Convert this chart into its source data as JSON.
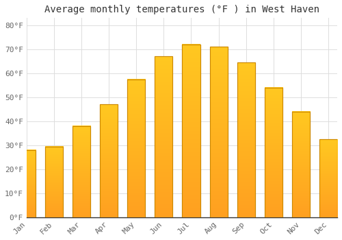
{
  "months": [
    "Jan",
    "Feb",
    "Mar",
    "Apr",
    "May",
    "Jun",
    "Jul",
    "Aug",
    "Sep",
    "Oct",
    "Nov",
    "Dec"
  ],
  "temperatures": [
    28,
    29.5,
    38,
    47,
    57.5,
    67,
    72,
    71,
    64.5,
    54,
    44,
    32.5
  ],
  "bar_color_top": "#FFC820",
  "bar_color_bottom": "#FFA020",
  "bar_edge_color": "#CC8800",
  "title": "Average monthly temperatures (°F ) in West Haven",
  "ylim": [
    0,
    83
  ],
  "yticks": [
    0,
    10,
    20,
    30,
    40,
    50,
    60,
    70,
    80
  ],
  "ytick_labels": [
    "0°F",
    "10°F",
    "20°F",
    "30°F",
    "40°F",
    "50°F",
    "60°F",
    "70°F",
    "80°F"
  ],
  "background_color": "#FFFFFF",
  "grid_color": "#DDDDDD",
  "title_fontsize": 10,
  "tick_fontsize": 8,
  "font_family": "monospace",
  "tick_color": "#666666",
  "spine_color": "#333333"
}
